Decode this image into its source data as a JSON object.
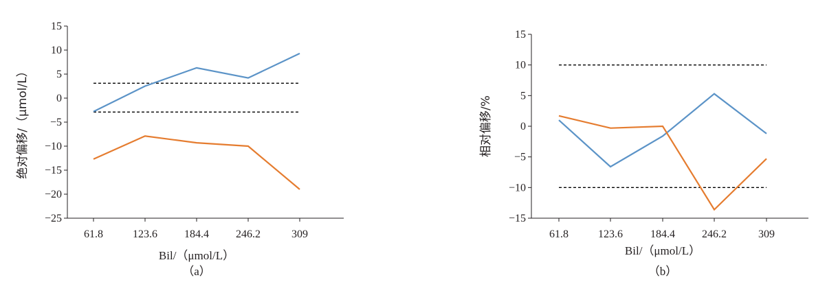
{
  "colors": {
    "series1": "#5b93c7",
    "series2": "#e57c2f",
    "axis": "#231f20",
    "limit": "#000000"
  },
  "chart_data": [
    {
      "type": "line",
      "panel_label": "（a）",
      "categories": [
        "61.8",
        "123.6",
        "184.4",
        "246.2",
        "309"
      ],
      "ylabel": "绝对偏移/（μmol/L）",
      "xlabel": "Bil/（μmol/L）",
      "ylim": [
        -25,
        15
      ],
      "yticks": [
        "15",
        "10",
        "5",
        "0",
        "−5",
        "−10",
        "−15",
        "−20",
        "−25"
      ],
      "ytick_values": [
        15,
        10,
        5,
        0,
        -5,
        -10,
        -15,
        -20,
        -25
      ],
      "series": [
        {
          "values": [
            -2.8,
            2.5,
            6.3,
            4.2,
            9.3
          ]
        },
        {
          "values": [
            -12.7,
            -7.9,
            -9.3,
            -10.0,
            -19.0
          ]
        }
      ],
      "limit_lines": [
        3.1,
        -2.9
      ]
    },
    {
      "type": "line",
      "panel_label": "（b）",
      "categories": [
        "61.8",
        "123.6",
        "184.4",
        "246.2",
        "309"
      ],
      "ylabel": "相对偏移/%",
      "xlabel": "Bil/（μmol/L）",
      "ylim": [
        -15,
        15
      ],
      "yticks": [
        "15",
        "10",
        "5",
        "0",
        "−5",
        "−10",
        "−15"
      ],
      "ytick_values": [
        15,
        10,
        5,
        0,
        -5,
        -10,
        -15
      ],
      "series": [
        {
          "values": [
            1.0,
            -6.6,
            -1.6,
            5.3,
            -1.2
          ]
        },
        {
          "values": [
            1.7,
            -0.3,
            0.0,
            -13.6,
            -5.3
          ]
        }
      ],
      "limit_lines": [
        10,
        -10
      ]
    }
  ]
}
